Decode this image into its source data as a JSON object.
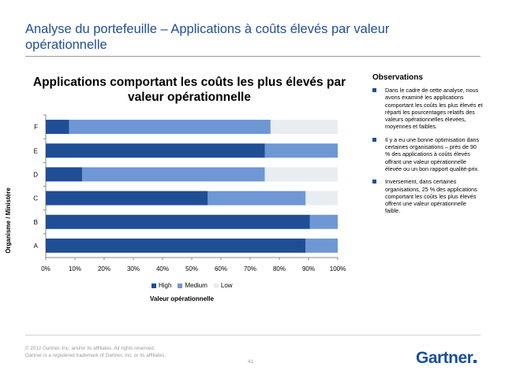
{
  "slide": {
    "title": "Analyse du portefeuille – Applications à coûts élevés par valeur opérationnelle"
  },
  "chart_data": {
    "type": "bar",
    "orientation": "horizontal",
    "stacked": true,
    "title": "Applications comportant les coûts les plus élevés par valeur opérationnelle",
    "xlabel": "Valeur opérationnelle",
    "ylabel": "Organisme / Ministère",
    "categories": [
      "F",
      "E",
      "D",
      "C",
      "B",
      "A"
    ],
    "series": [
      {
        "name": "High",
        "color": "#1f4e96",
        "values": [
          8,
          75,
          12.5,
          55.5,
          90.5,
          89
        ]
      },
      {
        "name": "Medium",
        "color": "#6f97d4",
        "values": [
          69,
          25,
          62.5,
          33.5,
          9.5,
          11
        ]
      },
      {
        "name": "Low",
        "color": "#e8edf2",
        "values": [
          23,
          0,
          25,
          11,
          0,
          0
        ]
      }
    ],
    "xticks": [
      "0%",
      "10%",
      "20%",
      "30%",
      "40%",
      "50%",
      "60%",
      "70%",
      "80%",
      "90%",
      "100%"
    ],
    "xlim": [
      0,
      100
    ],
    "grid": false,
    "legend_position": "bottom"
  },
  "observations": {
    "title": "Observations",
    "items": [
      "Dans le cadre de cette analyse, nous avons examiné les applications comportant les coûts les plus élevés et réparti les pourcentages relatifs des valeurs opérationnelles élevées, moyennes et faibles.",
      "Il y a eu une bonne optimisation dans certaines organisations – près de 90 % des applications à coûts élevés offrant une valeur opérationnelle élevée ou un bon rapport qualité-prix.",
      "Inversement, dans certaines organisations, 25 % des applications comportant les coûts les plus élevés offrent une valeur opérationnelle faible."
    ]
  },
  "footer": {
    "copyright": "© 2012 Gartner, Inc. and/or its affiliates. All rights reserved.",
    "trademark": "Gartner is a registered trademark of Gartner, Inc. or its affiliates.",
    "page_number": "41",
    "logo_text": "Gartner"
  }
}
